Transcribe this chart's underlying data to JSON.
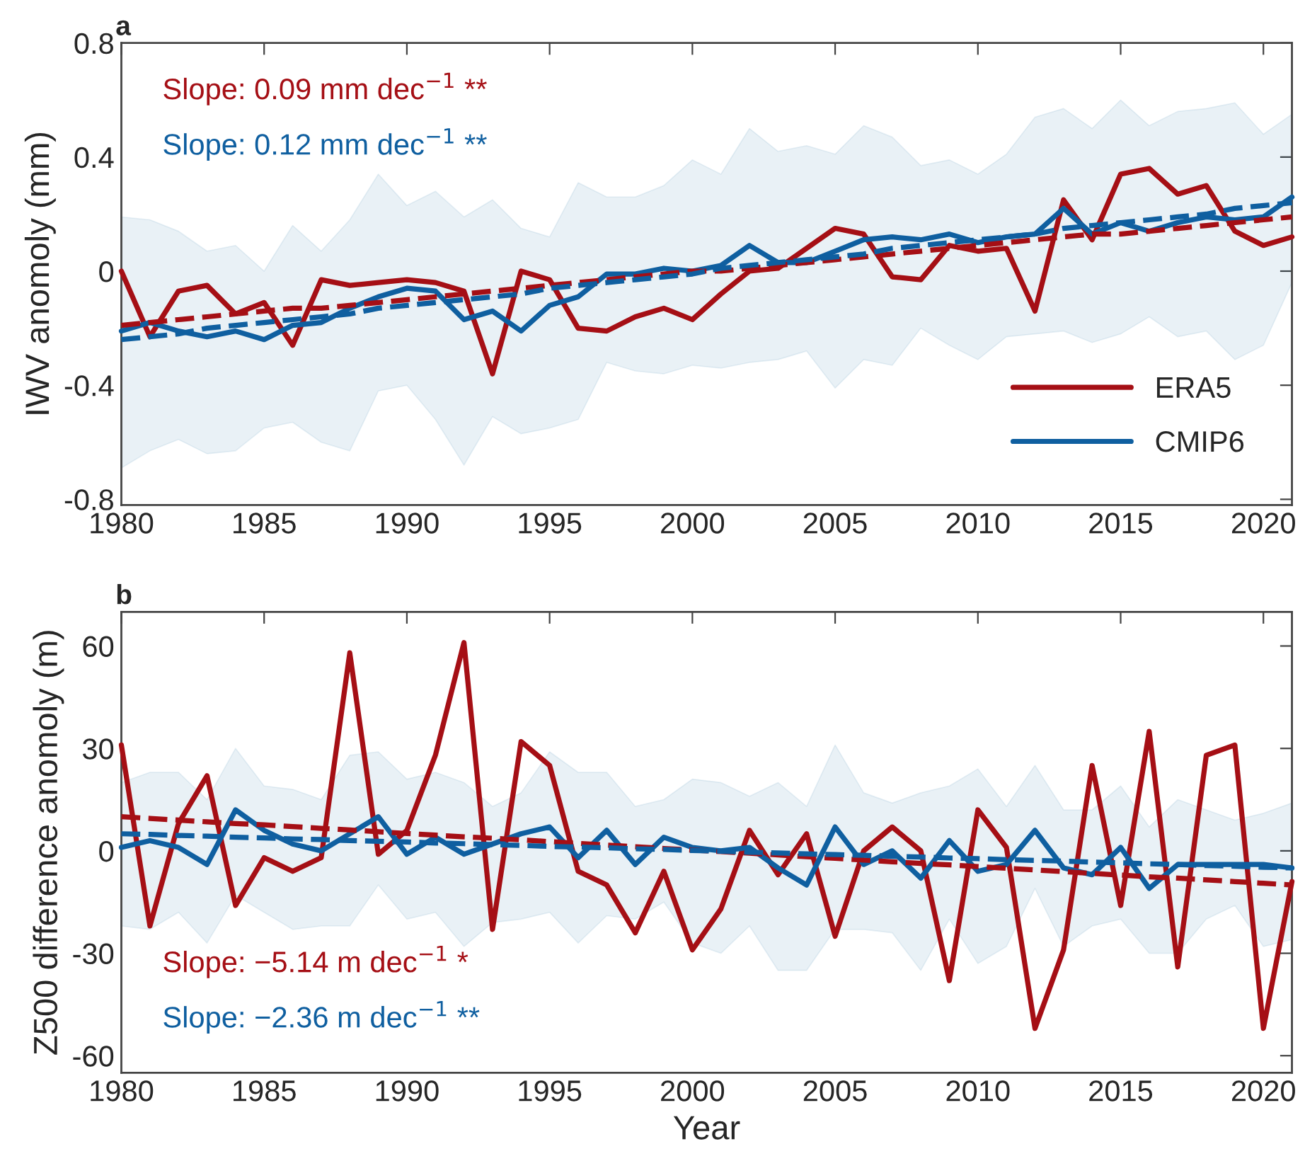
{
  "chart_data": [
    {
      "type": "line",
      "title": "a",
      "ylabel": "IWV anomoly (mm)",
      "xlim": [
        1980,
        2021
      ],
      "ylim": [
        -0.82,
        0.8
      ],
      "xticks": [
        1980,
        1985,
        1990,
        1995,
        2000,
        2005,
        2010,
        2015,
        2020
      ],
      "yticks": [
        {
          "value": 0.8,
          "label": "0.8"
        },
        {
          "value": 0.4,
          "label": "0.4"
        },
        0,
        {
          "value": -0.4,
          "label": "-0.4"
        },
        {
          "value": -0.8,
          "label": "-0.8"
        }
      ],
      "legend": "bottom right",
      "grid": false,
      "x": [
        1980,
        1981,
        1982,
        1983,
        1984,
        1985,
        1986,
        1987,
        1988,
        1989,
        1990,
        1991,
        1992,
        1993,
        1994,
        1995,
        1996,
        1997,
        1998,
        1999,
        2000,
        2001,
        2002,
        2003,
        2004,
        2005,
        2006,
        2007,
        2008,
        2009,
        2010,
        2011,
        2012,
        2013,
        2014,
        2015,
        2016,
        2017,
        2018,
        2019,
        2020,
        2021
      ],
      "series": [
        {
          "name": "ERA5",
          "color": "#a50f15",
          "values": [
            0.0,
            -0.23,
            -0.07,
            -0.05,
            -0.15,
            -0.11,
            -0.26,
            -0.03,
            -0.05,
            -0.04,
            -0.03,
            -0.04,
            -0.07,
            -0.36,
            0.0,
            -0.03,
            -0.2,
            -0.21,
            -0.16,
            -0.13,
            -0.17,
            -0.08,
            0.0,
            0.01,
            0.08,
            0.15,
            0.13,
            -0.02,
            -0.03,
            0.09,
            0.07,
            0.08,
            -0.14,
            0.25,
            0.11,
            0.34,
            0.36,
            0.27,
            0.3,
            0.14,
            0.09,
            0.12
          ]
        },
        {
          "name": "CMIP6",
          "color": "#0f5fa0",
          "values": [
            -0.21,
            -0.18,
            -0.21,
            -0.23,
            -0.21,
            -0.24,
            -0.19,
            -0.18,
            -0.13,
            -0.09,
            -0.06,
            -0.07,
            -0.17,
            -0.14,
            -0.21,
            -0.12,
            -0.09,
            -0.01,
            -0.01,
            0.01,
            0.0,
            0.02,
            0.09,
            0.03,
            0.03,
            0.07,
            0.11,
            0.12,
            0.11,
            0.13,
            0.1,
            0.12,
            0.13,
            0.22,
            0.13,
            0.17,
            0.14,
            0.17,
            0.19,
            0.18,
            0.19,
            0.26
          ],
          "lower": [
            -0.69,
            -0.63,
            -0.59,
            -0.64,
            -0.63,
            -0.55,
            -0.53,
            -0.6,
            -0.63,
            -0.42,
            -0.4,
            -0.52,
            -0.68,
            -0.51,
            -0.57,
            -0.55,
            -0.52,
            -0.32,
            -0.35,
            -0.36,
            -0.33,
            -0.34,
            -0.32,
            -0.31,
            -0.28,
            -0.41,
            -0.31,
            -0.33,
            -0.2,
            -0.26,
            -0.31,
            -0.23,
            -0.22,
            -0.21,
            -0.25,
            -0.22,
            -0.16,
            -0.23,
            -0.21,
            -0.31,
            -0.26,
            -0.04
          ],
          "upper": [
            0.19,
            0.18,
            0.14,
            0.07,
            0.09,
            0.0,
            0.16,
            0.07,
            0.18,
            0.34,
            0.23,
            0.28,
            0.19,
            0.25,
            0.15,
            0.12,
            0.31,
            0.26,
            0.26,
            0.3,
            0.39,
            0.34,
            0.5,
            0.42,
            0.44,
            0.41,
            0.51,
            0.47,
            0.37,
            0.39,
            0.34,
            0.41,
            0.54,
            0.57,
            0.5,
            0.6,
            0.51,
            0.56,
            0.57,
            0.59,
            0.48,
            0.55
          ]
        },
        {
          "type": "line",
          "color": "#a50f15",
          "line_style": "dashed",
          "values": [
            -0.19,
            -0.18,
            -0.17,
            -0.16,
            -0.15,
            -0.14,
            -0.13,
            -0.13,
            -0.12,
            -0.11,
            -0.1,
            -0.09,
            -0.08,
            -0.07,
            -0.06,
            -0.05,
            -0.04,
            -0.03,
            -0.02,
            -0.01,
            0.0,
            0.0,
            0.01,
            0.02,
            0.03,
            0.04,
            0.05,
            0.06,
            0.07,
            0.08,
            0.09,
            0.1,
            0.11,
            0.12,
            0.13,
            0.13,
            0.14,
            0.15,
            0.16,
            0.17,
            0.18,
            0.19
          ]
        },
        {
          "type": "line",
          "color": "#0f5fa0",
          "line_style": "dashed",
          "values": [
            -0.24,
            -0.23,
            -0.22,
            -0.2,
            -0.19,
            -0.18,
            -0.17,
            -0.16,
            -0.15,
            -0.13,
            -0.12,
            -0.11,
            -0.1,
            -0.09,
            -0.08,
            -0.06,
            -0.05,
            -0.04,
            -0.03,
            -0.02,
            -0.01,
            0.01,
            0.02,
            0.03,
            0.04,
            0.05,
            0.06,
            0.08,
            0.09,
            0.1,
            0.11,
            0.12,
            0.13,
            0.15,
            0.16,
            0.17,
            0.18,
            0.19,
            0.2,
            0.22,
            0.23,
            0.24
          ]
        }
      ],
      "annotations": [
        "Slope: 0.09 mm dec$^{−1}$ **",
        "Slope: 0.12 mm dec$^{−1}$ **"
      ]
    },
    {
      "type": "line",
      "title": "b",
      "xlabel": "Year",
      "ylabel": "Z500 difference anomoly (m)",
      "xlim": [
        1980,
        2021
      ],
      "ylim": [
        -65,
        70
      ],
      "xticks": [
        1980,
        1985,
        1990,
        1995,
        2000,
        2005,
        2010,
        2015,
        2020
      ],
      "yticks": [
        60,
        30,
        0,
        -30,
        -60
      ],
      "grid": false,
      "x": [
        1980,
        1981,
        1982,
        1983,
        1984,
        1985,
        1986,
        1987,
        1988,
        1989,
        1990,
        1991,
        1992,
        1993,
        1994,
        1995,
        1996,
        1997,
        1998,
        1999,
        2000,
        2001,
        2002,
        2003,
        2004,
        2005,
        2006,
        2007,
        2008,
        2009,
        2010,
        2011,
        2012,
        2013,
        2014,
        2015,
        2016,
        2017,
        2018,
        2019,
        2020,
        2021
      ],
      "series": [
        {
          "color": "#a50f15",
          "values": [
            31,
            -22,
            8,
            22,
            -16,
            -2,
            -6,
            -2,
            58,
            -1,
            6,
            28,
            61,
            -23,
            32,
            25,
            -6,
            -10,
            -24,
            -6,
            -29,
            -17,
            6,
            -7,
            5,
            -25,
            0,
            7,
            0,
            -38,
            12,
            1,
            -52,
            -29,
            25,
            -16,
            35,
            -34,
            28,
            31,
            -52,
            -9
          ]
        },
        {
          "color": "#0f5fa0",
          "values": [
            1,
            3,
            1,
            -4,
            12,
            6,
            2,
            0,
            5,
            10,
            -1,
            4,
            -1,
            2,
            5,
            7,
            -2,
            6,
            -4,
            4,
            1,
            0,
            1,
            -5,
            -10,
            7,
            -4,
            0,
            -8,
            3,
            -6,
            -4,
            6,
            -5,
            -7,
            1,
            -11,
            -4,
            -4,
            -4,
            -4,
            -5
          ],
          "lower": [
            -22,
            -23,
            -18,
            -27,
            -13,
            -18,
            -23,
            -22,
            -22,
            -10,
            -20,
            -18,
            -28,
            -21,
            -20,
            -18,
            -27,
            -19,
            -20,
            -15,
            -27,
            -30,
            -22,
            -35,
            -35,
            -23,
            -23,
            -24,
            -35,
            -20,
            -33,
            -28,
            -11,
            -28,
            -22,
            -20,
            -30,
            -30,
            -20,
            -16,
            -28,
            -26
          ],
          "upper": [
            20,
            23,
            23,
            15,
            30,
            19,
            18,
            15,
            28,
            29,
            21,
            23,
            20,
            13,
            17,
            29,
            23,
            23,
            13,
            15,
            21,
            20,
            16,
            20,
            13,
            31,
            17,
            14,
            17,
            19,
            24,
            13,
            25,
            12,
            12,
            19,
            7,
            15,
            12,
            9,
            11,
            14
          ]
        },
        {
          "type": "line",
          "color": "#a50f15",
          "line_style": "dashed",
          "values": [
            10.0,
            9.5,
            9.0,
            8.5,
            8.0,
            7.6,
            7.1,
            6.6,
            6.1,
            5.6,
            5.1,
            4.6,
            4.1,
            3.7,
            3.2,
            2.7,
            2.2,
            1.7,
            1.2,
            0.7,
            0.2,
            -0.2,
            -0.7,
            -1.2,
            -1.7,
            -2.2,
            -2.7,
            -3.2,
            -3.7,
            -4.1,
            -4.6,
            -5.1,
            -5.6,
            -6.1,
            -6.6,
            -7.1,
            -7.6,
            -8.0,
            -8.5,
            -9.0,
            -9.5,
            -10.0
          ]
        },
        {
          "type": "line",
          "color": "#0f5fa0",
          "line_style": "dashed",
          "values": [
            5.0,
            4.8,
            4.5,
            4.3,
            4.0,
            3.8,
            3.5,
            3.3,
            3.0,
            2.8,
            2.6,
            2.3,
            2.1,
            1.8,
            1.6,
            1.3,
            1.1,
            0.9,
            0.6,
            0.4,
            0.1,
            -0.1,
            -0.4,
            -0.6,
            -0.9,
            -1.1,
            -1.3,
            -1.6,
            -1.8,
            -2.1,
            -2.3,
            -2.6,
            -2.8,
            -3.0,
            -3.3,
            -3.5,
            -3.8,
            -4.0,
            -4.3,
            -4.5,
            -4.8,
            -5.0
          ]
        }
      ],
      "annotations": [
        "Slope: −5.14 m dec$^{−1}$ *",
        "Slope: −2.36 m dec$^{−1}$ **"
      ]
    }
  ]
}
